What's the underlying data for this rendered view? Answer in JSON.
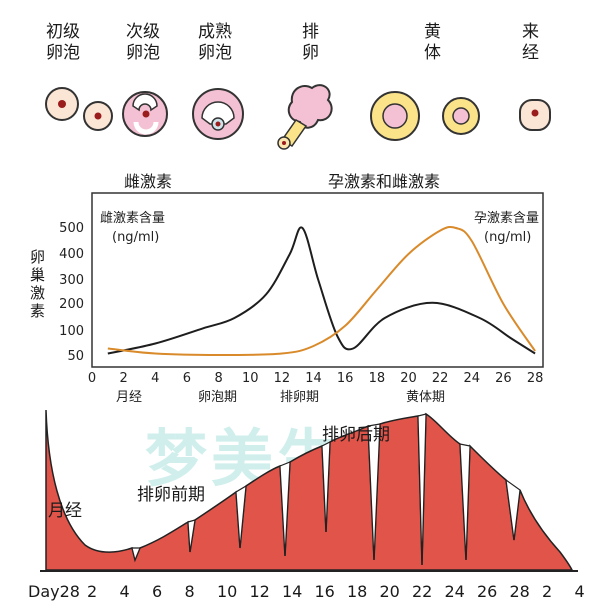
{
  "stages": [
    {
      "key": "primary",
      "label": "初级\n卵泡"
    },
    {
      "key": "secondary",
      "label": "次级\n卵泡"
    },
    {
      "key": "mature",
      "label": "成熟\n卵泡"
    },
    {
      "key": "ovulation",
      "label": "排\n卵"
    },
    {
      "key": "corpus",
      "label": "黄\n体"
    },
    {
      "key": "menses",
      "label": "来\n经"
    }
  ],
  "hormone_labels": {
    "estrogen": "雌激素",
    "both": "孕激素和雌激素"
  },
  "chart": {
    "y_axis_label": "卵巢激素",
    "estrogen_series_label": "雌激素含量",
    "estrogen_unit": "(ng/ml)",
    "progesterone_series_label": "孕激素含量",
    "progesterone_unit": "(ng/ml)",
    "phases": [
      "月经",
      "卵泡期",
      "排卵期",
      "黄体期"
    ]
  },
  "chart_data": {
    "type": "line",
    "x_ticks": [
      0,
      2,
      4,
      6,
      8,
      10,
      12,
      14,
      16,
      18,
      20,
      22,
      24,
      26,
      28
    ],
    "y_ticks": [
      50,
      100,
      150,
      200,
      250,
      300,
      400,
      500
    ],
    "series": [
      {
        "name": "雌激素含量",
        "color": "#1e1e1e",
        "x": [
          1,
          4,
          7,
          9,
          11,
          12.5,
          13.3,
          14.3,
          15.5,
          16.5,
          18.5,
          21.5,
          24.5,
          26.5,
          28
        ],
        "y": [
          55,
          75,
          110,
          150,
          240,
          400,
          500,
          300,
          90,
          65,
          150,
          205,
          150,
          85,
          55
        ]
      },
      {
        "name": "孕激素含量",
        "color": "#d98a2a",
        "x": [
          1,
          4,
          8,
          12,
          14,
          16,
          18,
          20,
          22,
          23,
          24,
          26,
          28
        ],
        "y": [
          65,
          55,
          52,
          55,
          70,
          120,
          260,
          400,
          490,
          500,
          450,
          200,
          60
        ]
      }
    ]
  },
  "cycle": {
    "phase_labels": {
      "menses": "月经",
      "pre_ovulation": "排卵前期",
      "post_ovulation": "排卵后期"
    },
    "day_prefix": "Day28",
    "days": [
      "2",
      "4",
      "6",
      "8",
      "10",
      "12",
      "14",
      "16",
      "18",
      "20",
      "22",
      "24",
      "26",
      "28",
      "2",
      "4"
    ]
  },
  "watermark": "梦美生命",
  "colors": {
    "estrogen": "#1e1e1e",
    "progesterone": "#d98a2a",
    "endometrium": "#e0544a",
    "follicle_pink": "#f4c0d3",
    "corpus_yellow": "#fbe38a"
  }
}
